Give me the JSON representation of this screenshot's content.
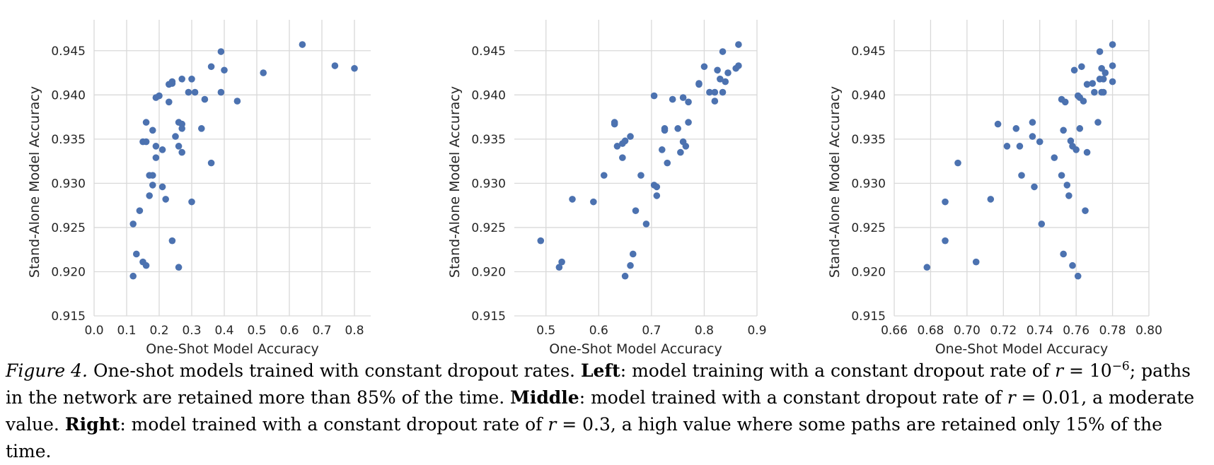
{
  "chart_data": [
    {
      "type": "scatter",
      "xlabel": "One-Shot Model Accuracy",
      "ylabel": "Stand-Alone Model Accuracy",
      "xlim": [
        0.0,
        0.85
      ],
      "ylim": [
        0.915,
        0.9485
      ],
      "xticks": [
        0.0,
        0.1,
        0.2,
        0.3,
        0.4,
        0.5,
        0.6,
        0.7,
        0.8
      ],
      "xtick_labels": [
        "0.0",
        "0.1",
        "0.2",
        "0.3",
        "0.4",
        "0.5",
        "0.6",
        "0.7",
        "0.8"
      ],
      "yticks": [
        0.915,
        0.92,
        0.925,
        0.93,
        0.935,
        0.94,
        0.945
      ],
      "ytick_labels": [
        "0.915",
        "0.920",
        "0.925",
        "0.930",
        "0.935",
        "0.940",
        "0.945"
      ],
      "grid": true,
      "color": "#4c72b0",
      "points": [
        [
          0.12,
          0.9195
        ],
        [
          0.12,
          0.9254
        ],
        [
          0.13,
          0.922
        ],
        [
          0.14,
          0.9269
        ],
        [
          0.15,
          0.9347
        ],
        [
          0.15,
          0.9211
        ],
        [
          0.16,
          0.9369
        ],
        [
          0.16,
          0.9347
        ],
        [
          0.16,
          0.9207
        ],
        [
          0.17,
          0.9309
        ],
        [
          0.17,
          0.9286
        ],
        [
          0.18,
          0.936
        ],
        [
          0.18,
          0.9298
        ],
        [
          0.18,
          0.9309
        ],
        [
          0.19,
          0.9397
        ],
        [
          0.19,
          0.9329
        ],
        [
          0.19,
          0.9342
        ],
        [
          0.2,
          0.9399
        ],
        [
          0.21,
          0.9338
        ],
        [
          0.21,
          0.9296
        ],
        [
          0.22,
          0.9282
        ],
        [
          0.23,
          0.9392
        ],
        [
          0.23,
          0.9412
        ],
        [
          0.24,
          0.9415
        ],
        [
          0.24,
          0.9413
        ],
        [
          0.24,
          0.9235
        ],
        [
          0.25,
          0.9353
        ],
        [
          0.26,
          0.9205
        ],
        [
          0.26,
          0.9369
        ],
        [
          0.26,
          0.9342
        ],
        [
          0.27,
          0.9367
        ],
        [
          0.27,
          0.9362
        ],
        [
          0.27,
          0.9335
        ],
        [
          0.27,
          0.9418
        ],
        [
          0.29,
          0.9403
        ],
        [
          0.3,
          0.9418
        ],
        [
          0.3,
          0.9279
        ],
        [
          0.31,
          0.9403
        ],
        [
          0.33,
          0.9362
        ],
        [
          0.34,
          0.9395
        ],
        [
          0.36,
          0.9432
        ],
        [
          0.36,
          0.9323
        ],
        [
          0.39,
          0.9403
        ],
        [
          0.39,
          0.9449
        ],
        [
          0.4,
          0.9428
        ],
        [
          0.44,
          0.9393
        ],
        [
          0.52,
          0.9425
        ],
        [
          0.64,
          0.9457
        ],
        [
          0.74,
          0.9433
        ],
        [
          0.8,
          0.943
        ]
      ]
    },
    {
      "type": "scatter",
      "xlabel": "One-Shot Model Accuracy",
      "ylabel": "Stand-Alone Model Accuracy",
      "xlim": [
        0.44,
        0.9
      ],
      "ylim": [
        0.915,
        0.9485
      ],
      "xticks": [
        0.5,
        0.6,
        0.7,
        0.8,
        0.9
      ],
      "xtick_labels": [
        "0.5",
        "0.6",
        "0.7",
        "0.8",
        "0.9"
      ],
      "yticks": [
        0.915,
        0.92,
        0.925,
        0.93,
        0.935,
        0.94,
        0.945
      ],
      "ytick_labels": [
        "0.915",
        "0.920",
        "0.925",
        "0.930",
        "0.935",
        "0.940",
        "0.945"
      ],
      "grid": true,
      "color": "#4c72b0",
      "points": [
        [
          0.49,
          0.9235
        ],
        [
          0.525,
          0.9205
        ],
        [
          0.53,
          0.9211
        ],
        [
          0.55,
          0.9282
        ],
        [
          0.59,
          0.9279
        ],
        [
          0.61,
          0.9309
        ],
        [
          0.63,
          0.9367
        ],
        [
          0.63,
          0.9369
        ],
        [
          0.635,
          0.9342
        ],
        [
          0.645,
          0.9329
        ],
        [
          0.645,
          0.9345
        ],
        [
          0.65,
          0.9348
        ],
        [
          0.65,
          0.9195
        ],
        [
          0.66,
          0.9353
        ],
        [
          0.66,
          0.9207
        ],
        [
          0.665,
          0.922
        ],
        [
          0.67,
          0.9269
        ],
        [
          0.68,
          0.9309
        ],
        [
          0.69,
          0.9254
        ],
        [
          0.705,
          0.9298
        ],
        [
          0.705,
          0.9399
        ],
        [
          0.71,
          0.9296
        ],
        [
          0.71,
          0.9286
        ],
        [
          0.72,
          0.9338
        ],
        [
          0.725,
          0.9362
        ],
        [
          0.725,
          0.936
        ],
        [
          0.73,
          0.9323
        ],
        [
          0.74,
          0.9395
        ],
        [
          0.75,
          0.9362
        ],
        [
          0.755,
          0.9335
        ],
        [
          0.76,
          0.9347
        ],
        [
          0.76,
          0.9397
        ],
        [
          0.765,
          0.9342
        ],
        [
          0.77,
          0.9392
        ],
        [
          0.77,
          0.9369
        ],
        [
          0.79,
          0.9412
        ],
        [
          0.79,
          0.9413
        ],
        [
          0.8,
          0.9432
        ],
        [
          0.81,
          0.9403
        ],
        [
          0.82,
          0.9403
        ],
        [
          0.82,
          0.9393
        ],
        [
          0.825,
          0.9428
        ],
        [
          0.83,
          0.9418
        ],
        [
          0.835,
          0.9449
        ],
        [
          0.835,
          0.9403
        ],
        [
          0.84,
          0.9415
        ],
        [
          0.845,
          0.9425
        ],
        [
          0.86,
          0.943
        ],
        [
          0.865,
          0.9433
        ],
        [
          0.865,
          0.9457
        ]
      ]
    },
    {
      "type": "scatter",
      "xlabel": "One-Shot Model Accuracy",
      "ylabel": "Stand-Alone Model Accuracy",
      "xlim": [
        0.66,
        0.8
      ],
      "ylim": [
        0.915,
        0.9485
      ],
      "xticks": [
        0.66,
        0.68,
        0.7,
        0.72,
        0.74,
        0.76,
        0.78,
        0.8
      ],
      "xtick_labels": [
        "0.66",
        "0.68",
        "0.70",
        "0.72",
        "0.74",
        "0.76",
        "0.78",
        "0.80"
      ],
      "yticks": [
        0.915,
        0.92,
        0.925,
        0.93,
        0.935,
        0.94,
        0.945
      ],
      "ytick_labels": [
        "0.915",
        "0.920",
        "0.925",
        "0.930",
        "0.935",
        "0.940",
        "0.945"
      ],
      "grid": true,
      "color": "#4c72b0",
      "points": [
        [
          0.678,
          0.9205
        ],
        [
          0.688,
          0.9279
        ],
        [
          0.688,
          0.9235
        ],
        [
          0.695,
          0.9323
        ],
        [
          0.705,
          0.9211
        ],
        [
          0.713,
          0.9282
        ],
        [
          0.717,
          0.9367
        ],
        [
          0.722,
          0.9342
        ],
        [
          0.727,
          0.9362
        ],
        [
          0.729,
          0.9342
        ],
        [
          0.73,
          0.9309
        ],
        [
          0.736,
          0.9369
        ],
        [
          0.736,
          0.9353
        ],
        [
          0.737,
          0.9296
        ],
        [
          0.74,
          0.9347
        ],
        [
          0.741,
          0.9254
        ],
        [
          0.748,
          0.9329
        ],
        [
          0.752,
          0.9395
        ],
        [
          0.752,
          0.9309
        ],
        [
          0.753,
          0.936
        ],
        [
          0.753,
          0.922
        ],
        [
          0.754,
          0.9392
        ],
        [
          0.755,
          0.9298
        ],
        [
          0.756,
          0.9286
        ],
        [
          0.757,
          0.9348
        ],
        [
          0.758,
          0.9342
        ],
        [
          0.758,
          0.9207
        ],
        [
          0.759,
          0.9428
        ],
        [
          0.76,
          0.9338
        ],
        [
          0.761,
          0.9399
        ],
        [
          0.761,
          0.9195
        ],
        [
          0.762,
          0.9397
        ],
        [
          0.762,
          0.9362
        ],
        [
          0.763,
          0.9432
        ],
        [
          0.764,
          0.9393
        ],
        [
          0.765,
          0.9269
        ],
        [
          0.766,
          0.9335
        ],
        [
          0.766,
          0.9412
        ],
        [
          0.769,
          0.9413
        ],
        [
          0.77,
          0.9403
        ],
        [
          0.772,
          0.9369
        ],
        [
          0.773,
          0.9449
        ],
        [
          0.773,
          0.9418
        ],
        [
          0.774,
          0.9403
        ],
        [
          0.774,
          0.943
        ],
        [
          0.775,
          0.9403
        ],
        [
          0.775,
          0.9418
        ],
        [
          0.776,
          0.9425
        ],
        [
          0.78,
          0.9457
        ],
        [
          0.78,
          0.9433
        ],
        [
          0.78,
          0.9415
        ]
      ]
    }
  ],
  "caption": {
    "figure_label": "Figure 4.",
    "intro": " One-shot models trained with constant dropout rates. ",
    "left_label": "Left",
    "left_text": ": model training with a constant dropout rate of ",
    "left_var": "r",
    "left_eq": " = 10",
    "left_exp": "−6",
    "left_rest": "; paths in the network are retained more than 85% of the time. ",
    "middle_label": "Middle",
    "middle_text": ": model trained with a constant dropout rate of ",
    "middle_var": "r",
    "middle_eq": " = 0.01",
    "middle_rest": ", a moderate value. ",
    "right_label": "Right",
    "right_text": ": model trained with a constant dropout rate of ",
    "right_var": "r",
    "right_eq": " = 0.3",
    "right_rest": ", a high value where some paths are retained only 15% of the time."
  }
}
